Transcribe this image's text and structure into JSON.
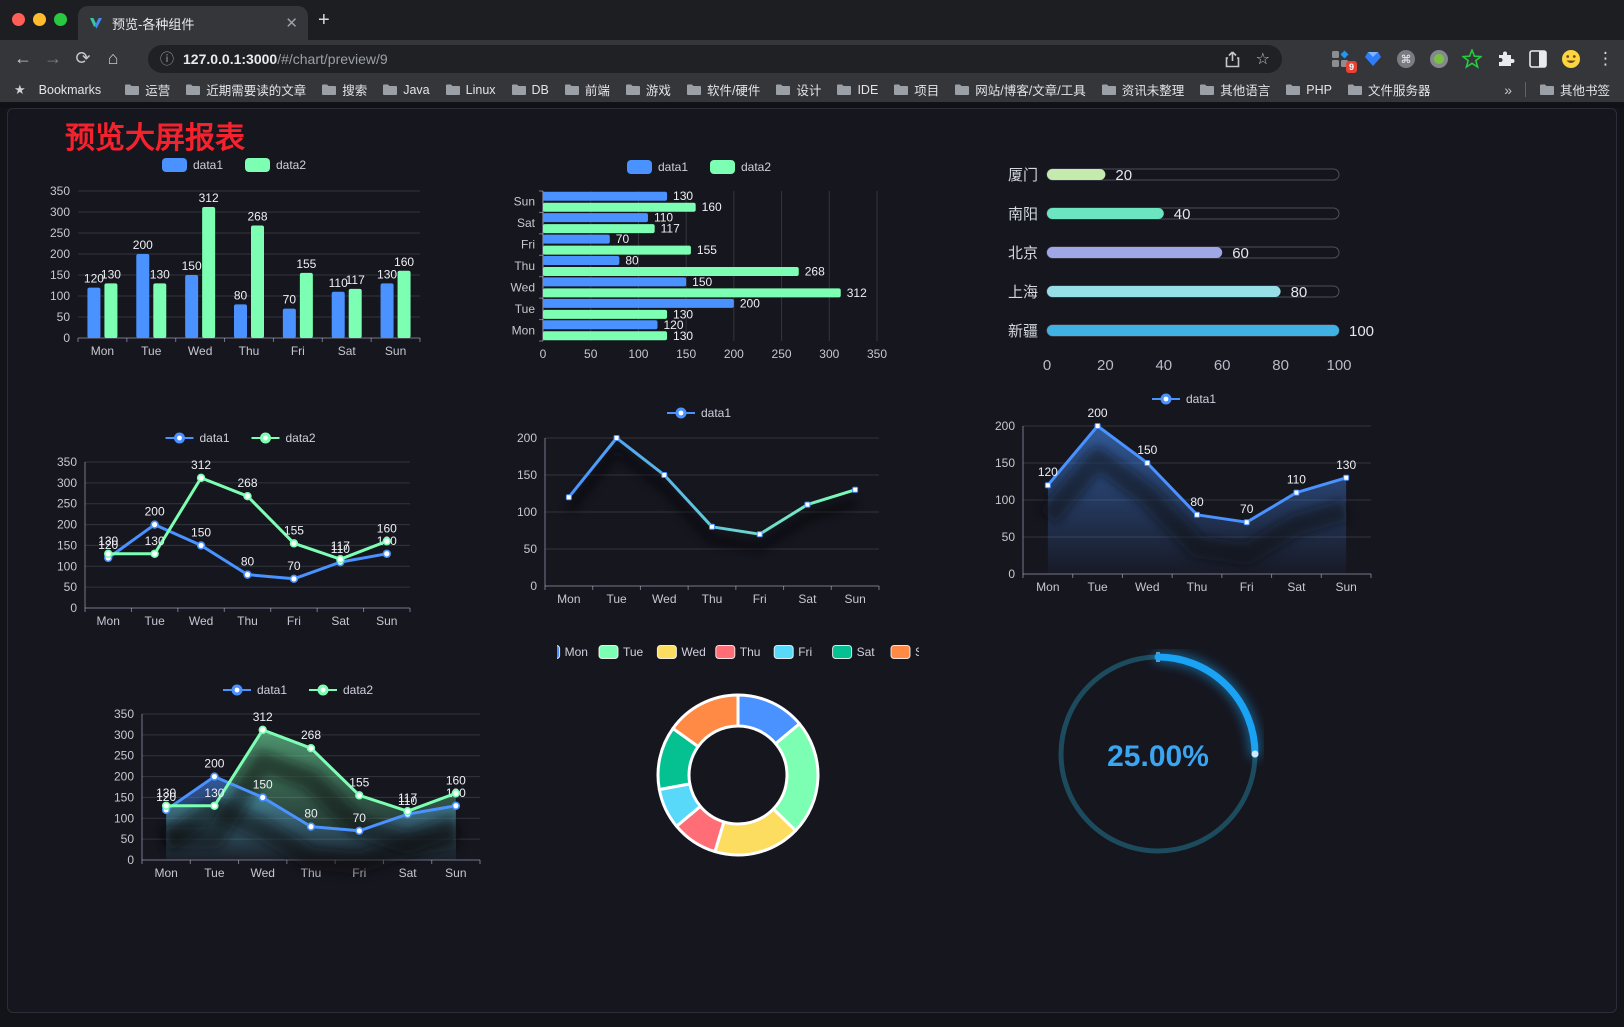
{
  "browser": {
    "tab_title": "预览-各种组件",
    "new_tab_label": "+",
    "close_label": "✕",
    "url_host": "127.0.0.1:3000",
    "url_path": "/#/chart/preview/9",
    "url_info_icon": "ⓘ",
    "extension_badge": "9",
    "menu_icon": "⋮",
    "bookmarks_star": "★",
    "bookmarks_label": "Bookmarks",
    "bookmarks": [
      "运营",
      "近期需要读的文章",
      "搜索",
      "Java",
      "Linux",
      "DB",
      "前端",
      "游戏",
      "软件/硬件",
      "设计",
      "IDE",
      "项目",
      "网站/博客/文章/工具",
      "资讯未整理",
      "其他语言",
      "PHP",
      "文件服务器"
    ],
    "bookmarks_overflow": "»",
    "other_bookmarks": "其他书签",
    "nav": {
      "back": "←",
      "forward": "→",
      "reload": "⟳",
      "home": "⌂",
      "star": "☆"
    }
  },
  "page": {
    "title": "预览大屏报表",
    "title_color": "#f5222d",
    "background": "#16161f"
  },
  "chart_data": [
    {
      "id": "grouped-bar",
      "type": "bar",
      "categories": [
        "Mon",
        "Tue",
        "Wed",
        "Thu",
        "Fri",
        "Sat",
        "Sun"
      ],
      "series": [
        {
          "name": "data1",
          "color": "#4992ff",
          "values": [
            120,
            200,
            150,
            80,
            70,
            110,
            130
          ]
        },
        {
          "name": "data2",
          "color": "#7cffb2",
          "values": [
            130,
            130,
            312,
            268,
            155,
            117,
            160
          ]
        }
      ],
      "ylim": [
        0,
        350
      ],
      "ystep": 50,
      "grid": true,
      "legend_position": "top",
      "value_labels": true
    },
    {
      "id": "grouped-hbar",
      "type": "bar-horizontal",
      "categories": [
        "Mon",
        "Tue",
        "Wed",
        "Thu",
        "Fri",
        "Sat",
        "Sun"
      ],
      "series": [
        {
          "name": "data1",
          "color": "#4992ff",
          "values": [
            120,
            200,
            150,
            80,
            70,
            110,
            130
          ]
        },
        {
          "name": "data2",
          "color": "#7cffb2",
          "values": [
            130,
            130,
            312,
            268,
            155,
            117,
            160
          ]
        }
      ],
      "xlim": [
        0,
        350
      ],
      "xstep": 50,
      "grid": true,
      "legend_position": "top",
      "value_labels": true
    },
    {
      "id": "progress",
      "type": "progress",
      "rows": [
        {
          "label": "厦门",
          "value": 20,
          "color": "#c4ebad"
        },
        {
          "label": "南阳",
          "value": 40,
          "color": "#6be6c1"
        },
        {
          "label": "北京",
          "value": 60,
          "color": "#a0a7e6"
        },
        {
          "label": "上海",
          "value": 80,
          "color": "#96dee8"
        },
        {
          "label": "新疆",
          "value": 100,
          "color": "#3fb1e3"
        }
      ],
      "max": 100,
      "ticks": [
        0,
        20,
        40,
        60,
        80,
        100
      ]
    },
    {
      "id": "line-two",
      "type": "line",
      "categories": [
        "Mon",
        "Tue",
        "Wed",
        "Thu",
        "Fri",
        "Sat",
        "Sun"
      ],
      "series": [
        {
          "name": "data1",
          "color": "#4992ff",
          "values": [
            120,
            200,
            150,
            80,
            70,
            110,
            130
          ],
          "marker": "circle",
          "labels": true
        },
        {
          "name": "data2",
          "color": "#7cffb2",
          "values": [
            130,
            130,
            312,
            268,
            155,
            117,
            160
          ],
          "marker": "circle",
          "labels": true
        }
      ],
      "ylim": [
        0,
        350
      ],
      "ystep": 50,
      "grid": true,
      "legend_style": "line"
    },
    {
      "id": "line-gradient",
      "type": "line",
      "categories": [
        "Mon",
        "Tue",
        "Wed",
        "Thu",
        "Fri",
        "Sat",
        "Sun"
      ],
      "series": [
        {
          "name": "data1",
          "color": "#4992ff",
          "gradient_stroke": [
            "#4992ff",
            "#7cffb2"
          ],
          "values": [
            120,
            200,
            150,
            80,
            70,
            110,
            130
          ],
          "marker": "rect",
          "labels": false
        }
      ],
      "ylim": [
        0,
        200
      ],
      "ystep": 50,
      "grid": true,
      "legend_style": "line",
      "shadow": "line"
    },
    {
      "id": "line-area",
      "type": "line",
      "categories": [
        "Mon",
        "Tue",
        "Wed",
        "Thu",
        "Fri",
        "Sat",
        "Sun"
      ],
      "series": [
        {
          "name": "data1",
          "color": "#4992ff",
          "values": [
            120,
            200,
            150,
            80,
            70,
            110,
            130
          ],
          "marker": "rect",
          "labels": true,
          "area": true
        }
      ],
      "ylim": [
        0,
        200
      ],
      "ystep": 50,
      "grid": true,
      "legend_style": "line",
      "shadow": "area"
    },
    {
      "id": "line-area-two",
      "type": "line",
      "categories": [
        "Mon",
        "Tue",
        "Wed",
        "Thu",
        "Fri",
        "Sat",
        "Sun"
      ],
      "series": [
        {
          "name": "data1",
          "color": "#4992ff",
          "values": [
            120,
            200,
            150,
            80,
            70,
            110,
            130
          ],
          "marker": "circle",
          "labels": true,
          "area": true
        },
        {
          "name": "data2",
          "color": "#7cffb2",
          "values": [
            130,
            130,
            312,
            268,
            155,
            117,
            160
          ],
          "marker": "circle",
          "labels": true,
          "area": true
        }
      ],
      "ylim": [
        0,
        350
      ],
      "ystep": 50,
      "grid": true,
      "legend_style": "line",
      "shadow": "area"
    },
    {
      "id": "donut",
      "type": "donut",
      "items": [
        {
          "label": "Mon",
          "value": 120,
          "color": "#4992ff"
        },
        {
          "label": "Tue",
          "value": 200,
          "color": "#7cffb2"
        },
        {
          "label": "Wed",
          "value": 150,
          "color": "#fddd60"
        },
        {
          "label": "Thu",
          "value": 80,
          "color": "#ff6e76"
        },
        {
          "label": "Fri",
          "value": 70,
          "color": "#58d9f9"
        },
        {
          "label": "Sat",
          "value": 110,
          "color": "#05c091"
        },
        {
          "label": "Sun",
          "value": 130,
          "color": "#ff8a45"
        }
      ],
      "border_color": "#ffffff"
    },
    {
      "id": "gauge",
      "type": "gauge",
      "value_percent": 25,
      "display": "25.00%",
      "progress_color": "#1aa3f5",
      "track_color": "#1d4b5e",
      "text_color": "#3aa5f0"
    }
  ]
}
